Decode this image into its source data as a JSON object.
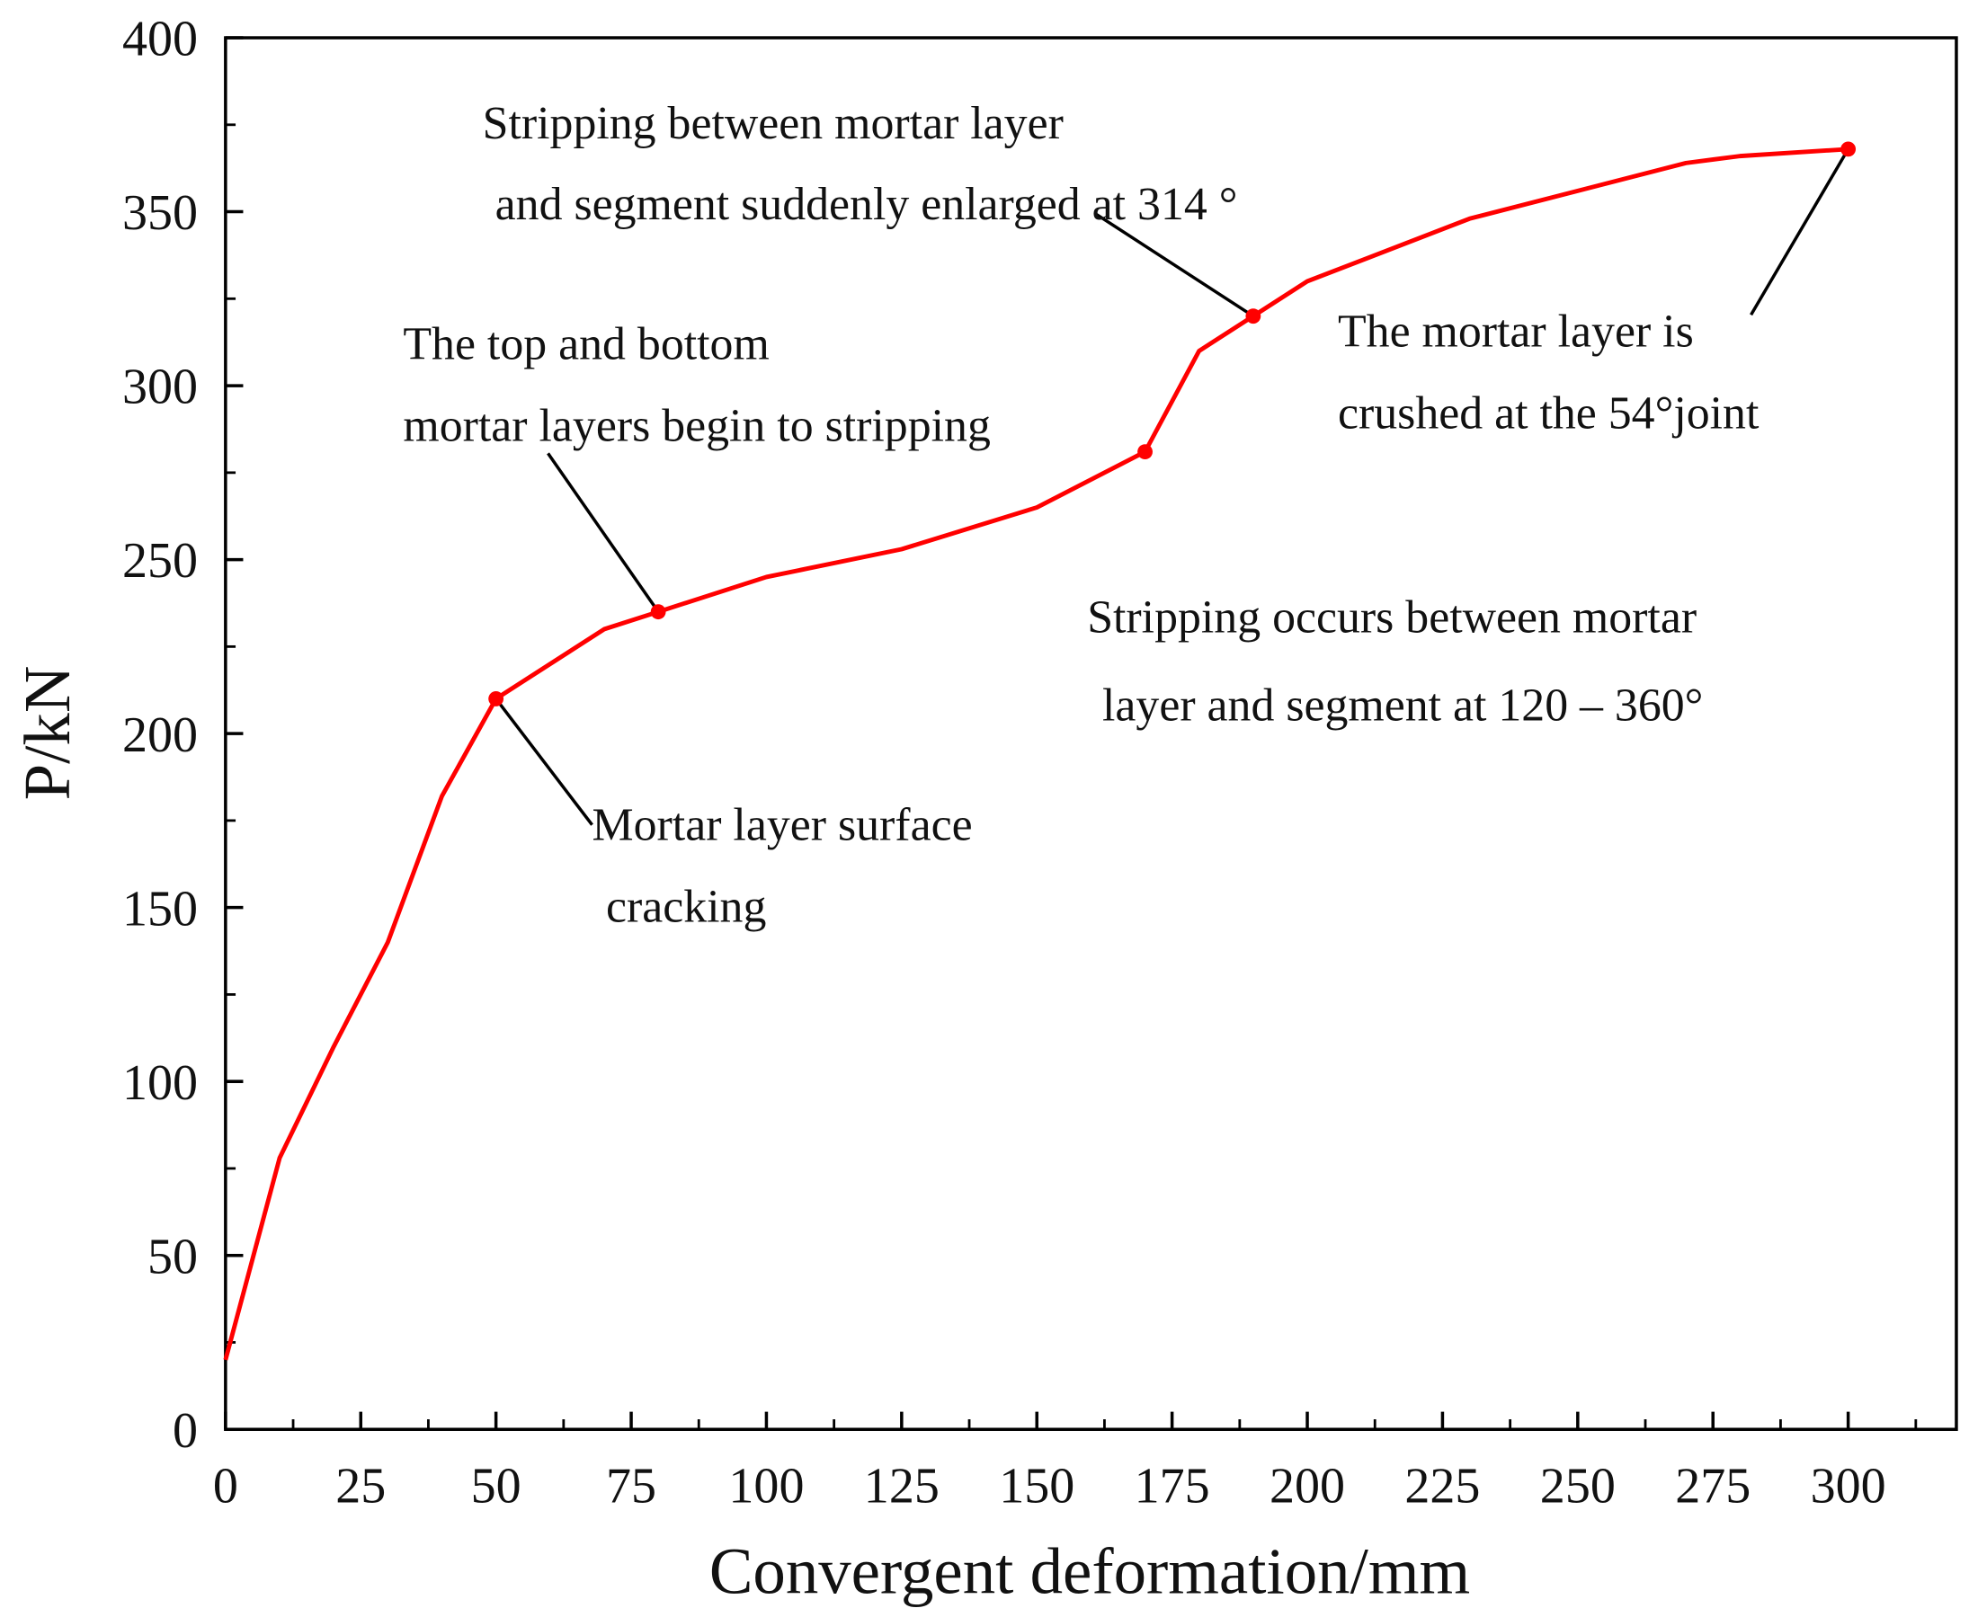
{
  "chart_data": {
    "type": "line",
    "x_label": "Convergent deformation/mm",
    "y_label": "P/kN",
    "x": [
      0,
      10,
      20,
      30,
      40,
      50,
      70,
      80,
      100,
      125,
      150,
      170,
      180,
      190,
      200,
      230,
      270,
      280,
      300
    ],
    "series": [
      {
        "color": "#ff0000",
        "values": [
          20,
          78,
          110,
          140,
          182,
          210,
          230,
          235,
          245,
          253,
          265,
          281,
          310,
          320,
          330,
          348,
          364,
          366,
          368
        ]
      }
    ],
    "xlim": [
      0,
      320
    ],
    "ylim": [
      0,
      400
    ],
    "xticks": [
      0,
      25,
      50,
      75,
      100,
      125,
      150,
      175,
      200,
      225,
      250,
      275,
      300
    ],
    "yticks": [
      0,
      50,
      100,
      150,
      200,
      250,
      300,
      350,
      400
    ],
    "minor_ticks": true,
    "annotations": [
      {
        "lines": [
          "Mortar layer surface",
          "cracking"
        ],
        "point": [
          50,
          210
        ]
      },
      {
        "lines": [
          "The top and bottom",
          "mortar layers begin to stripping"
        ],
        "point": [
          80,
          235
        ]
      },
      {
        "lines": [
          "Stripping between mortar layer",
          "and segment suddenly enlarged at 314 °"
        ],
        "point": [
          190,
          320
        ]
      },
      {
        "lines": [
          "Stripping occurs between mortar",
          "layer and segment at 120 – 360°"
        ],
        "point": [
          170,
          281
        ]
      },
      {
        "lines": [
          "The mortar layer is",
          "crushed at the 54°joint"
        ],
        "point": [
          300,
          368
        ]
      }
    ]
  }
}
